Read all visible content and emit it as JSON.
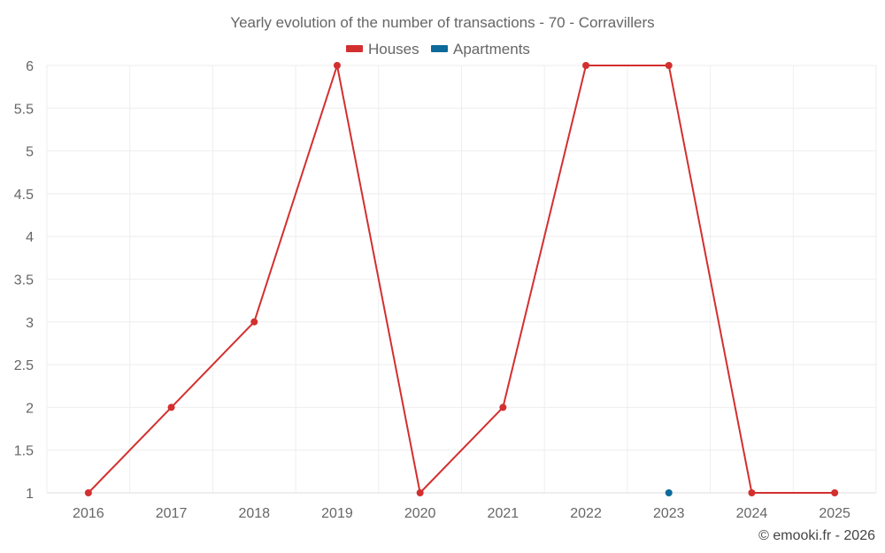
{
  "chart_data": {
    "type": "line",
    "title": "Yearly evolution of the number of transactions - 70 - Corravillers",
    "categories": [
      "2016",
      "2017",
      "2018",
      "2019",
      "2020",
      "2021",
      "2022",
      "2023",
      "2024",
      "2025"
    ],
    "series": [
      {
        "name": "Houses",
        "color": "#d32f2f",
        "values": [
          1,
          2,
          3,
          6,
          1,
          2,
          6,
          6,
          1,
          1
        ]
      },
      {
        "name": "Apartments",
        "color": "#0d6a9a",
        "values": [
          null,
          null,
          null,
          null,
          null,
          null,
          null,
          1,
          null,
          null
        ]
      }
    ],
    "y_ticks": [
      "1",
      "1.5",
      "2",
      "2.5",
      "3",
      "3.5",
      "4",
      "4.5",
      "5",
      "5.5",
      "6"
    ],
    "ylim": [
      1,
      6
    ],
    "grid": true,
    "legend_position": "top-center",
    "credit": "© emooki.fr - 2026"
  }
}
